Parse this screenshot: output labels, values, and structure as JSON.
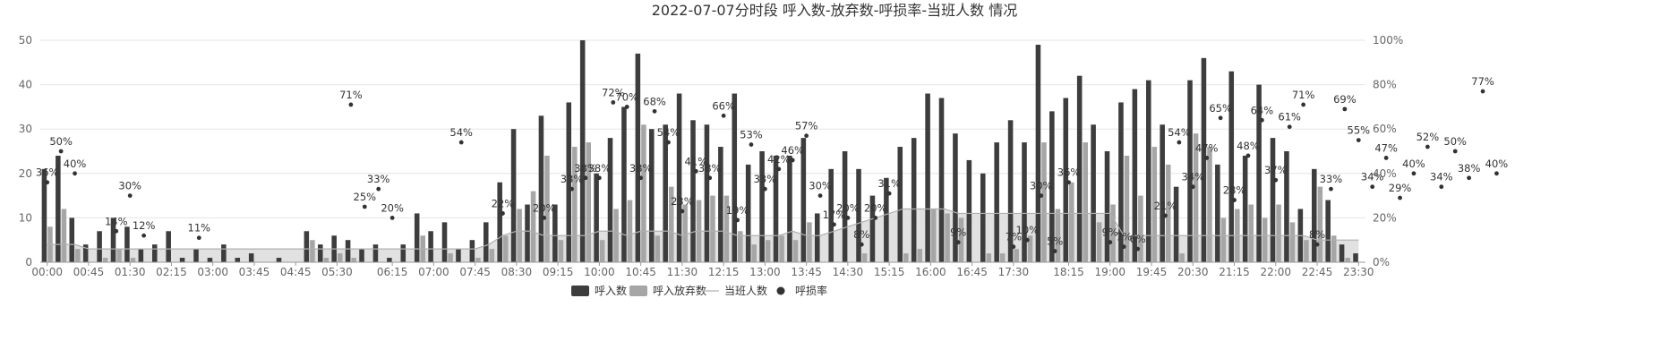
{
  "chart_data": {
    "type": "bar",
    "title": "2022-07-07分时段 呼入数-放弃数-呼损率-当班人数 情况",
    "left_axis": {
      "min": 0,
      "max": 50,
      "ticks": [
        "0",
        "10",
        "20",
        "30",
        "40",
        "50"
      ]
    },
    "right_axis": {
      "min": 0,
      "max": 100,
      "ticks": [
        "0%",
        "20%",
        "40%",
        "60%",
        "80%",
        "100%"
      ]
    },
    "x_tick_labels": [
      "00:00",
      "00:45",
      "01:30",
      "02:15",
      "03:00",
      "03:45",
      "04:45",
      "05:30",
      "06:15",
      "07:00",
      "07:45",
      "08:30",
      "09:15",
      "10:00",
      "10:45",
      "11:30",
      "12:15",
      "13:00",
      "13:45",
      "14:30",
      "15:15",
      "16:00",
      "16:45",
      "17:30",
      "18:15",
      "19:00",
      "19:45",
      "20:30",
      "21:15",
      "22:00",
      "22:45",
      "23:30"
    ],
    "interval_minutes": 15,
    "grid": true,
    "legend_position": "bottom",
    "series": [
      {
        "name": "呼入数",
        "type": "bar",
        "color": "#3d3d3d",
        "values": [
          21,
          24,
          10,
          4,
          7,
          10,
          8,
          3,
          4,
          7,
          1,
          3,
          1,
          4,
          1,
          2,
          0,
          1,
          0,
          7,
          4,
          6,
          5,
          3,
          4,
          1,
          4,
          11,
          7,
          9,
          3,
          5,
          9,
          18,
          30,
          13,
          33,
          13,
          36,
          50,
          20,
          28,
          35,
          47,
          30,
          31,
          38,
          32,
          31,
          26,
          38,
          22,
          25,
          24,
          24,
          28,
          11,
          21,
          25,
          21,
          15,
          19,
          26,
          28,
          38,
          37,
          29,
          23,
          20,
          27,
          32,
          27,
          49,
          34,
          37,
          42,
          31,
          25,
          36,
          39,
          41,
          31,
          17,
          41,
          46,
          22,
          43,
          24,
          40,
          28,
          25,
          12,
          21,
          14,
          4,
          2
        ]
      },
      {
        "name": "呼入放弃数",
        "type": "bar",
        "color": "#a6a6a6",
        "values": [
          8,
          12,
          3,
          0,
          1,
          3,
          1,
          0,
          0,
          0,
          0,
          0,
          0,
          0,
          0,
          0,
          0,
          0,
          0,
          5,
          1,
          2,
          1,
          0,
          0,
          0,
          0,
          6,
          0,
          2,
          0,
          1,
          3,
          6,
          12,
          16,
          24,
          5,
          26,
          27,
          5,
          12,
          14,
          31,
          6,
          17,
          13,
          14,
          15,
          15,
          7,
          4,
          5,
          6,
          5,
          9,
          0,
          0,
          0,
          2,
          0,
          0,
          2,
          3,
          12,
          11,
          10,
          0,
          2,
          2,
          3,
          6,
          27,
          12,
          18,
          27,
          9,
          13,
          24,
          15,
          26,
          22,
          2,
          29,
          26,
          10,
          12,
          13,
          10,
          13,
          9,
          5,
          17,
          6,
          1,
          0
        ]
      },
      {
        "name": "当班人数",
        "type": "line",
        "color": "#bdbdbd",
        "values": [
          4,
          4,
          4,
          3,
          3,
          3,
          3,
          3,
          3,
          3,
          3,
          3,
          3,
          3,
          3,
          3,
          3,
          3,
          3,
          3,
          3,
          3,
          3,
          3,
          3,
          3,
          3,
          3,
          3,
          3,
          3,
          3,
          4,
          6,
          7,
          7,
          6,
          6,
          6,
          6,
          7,
          7,
          6,
          7,
          7,
          7,
          6,
          7,
          7,
          7,
          6,
          6,
          6,
          6,
          7,
          6,
          6,
          7,
          8,
          9,
          10,
          11,
          12,
          12,
          12,
          12,
          11,
          11,
          11,
          11,
          11,
          11,
          11,
          11,
          11,
          11,
          11,
          11,
          6,
          6,
          6,
          6,
          6,
          6,
          6,
          6,
          6,
          6,
          6,
          6,
          6,
          6,
          5,
          5,
          5,
          5
        ]
      },
      {
        "name": "呼损率",
        "type": "scatter",
        "color": "#333333",
        "points": [
          {
            "i": 0,
            "v": 36
          },
          {
            "i": 1,
            "v": 50
          },
          {
            "i": 2,
            "v": 40
          },
          {
            "i": 5,
            "v": 14
          },
          {
            "i": 6,
            "v": 30
          },
          {
            "i": 7,
            "v": 12
          },
          {
            "i": 11,
            "v": 11
          },
          {
            "i": 22,
            "v": 71
          },
          {
            "i": 23,
            "v": 25
          },
          {
            "i": 24,
            "v": 33
          },
          {
            "i": 25,
            "v": 20
          },
          {
            "i": 30,
            "v": 54
          },
          {
            "i": 33,
            "v": 22
          },
          {
            "i": 36,
            "v": 20
          },
          {
            "i": 38,
            "v": 33
          },
          {
            "i": 39,
            "v": 38
          },
          {
            "i": 40,
            "v": 38
          },
          {
            "i": 41,
            "v": 72
          },
          {
            "i": 42,
            "v": 70
          },
          {
            "i": 43,
            "v": 38
          },
          {
            "i": 44,
            "v": 68
          },
          {
            "i": 45,
            "v": 54
          },
          {
            "i": 46,
            "v": 23
          },
          {
            "i": 47,
            "v": 41
          },
          {
            "i": 48,
            "v": 38
          },
          {
            "i": 49,
            "v": 66
          },
          {
            "i": 50,
            "v": 19
          },
          {
            "i": 51,
            "v": 53
          },
          {
            "i": 52,
            "v": 33
          },
          {
            "i": 53,
            "v": 42
          },
          {
            "i": 54,
            "v": 46
          },
          {
            "i": 55,
            "v": 57
          },
          {
            "i": 56,
            "v": 30
          },
          {
            "i": 57,
            "v": 17
          },
          {
            "i": 58,
            "v": 20
          },
          {
            "i": 59,
            "v": 8
          },
          {
            "i": 60,
            "v": 20
          },
          {
            "i": 61,
            "v": 31
          },
          {
            "i": 66,
            "v": 9
          },
          {
            "i": 70,
            "v": 7
          },
          {
            "i": 71,
            "v": 10
          },
          {
            "i": 72,
            "v": 30
          },
          {
            "i": 73,
            "v": 5
          },
          {
            "i": 74,
            "v": 36
          },
          {
            "i": 77,
            "v": 9
          },
          {
            "i": 78,
            "v": 7
          },
          {
            "i": 79,
            "v": 6
          },
          {
            "i": 81,
            "v": 21
          },
          {
            "i": 82,
            "v": 54
          },
          {
            "i": 83,
            "v": 34
          },
          {
            "i": 84,
            "v": 47
          },
          {
            "i": 85,
            "v": 65
          },
          {
            "i": 86,
            "v": 28
          },
          {
            "i": 87,
            "v": 48
          },
          {
            "i": 88,
            "v": 64
          },
          {
            "i": 89,
            "v": 37
          },
          {
            "i": 90,
            "v": 61
          },
          {
            "i": 91,
            "v": 71
          },
          {
            "i": 92,
            "v": 8
          },
          {
            "i": 93,
            "v": 33
          },
          {
            "i": 94,
            "v": 69
          },
          {
            "i": 95,
            "v": 55
          },
          {
            "i": 96,
            "v": 34
          },
          {
            "i": 97,
            "v": 47
          },
          {
            "i": 98,
            "v": 29
          },
          {
            "i": 99,
            "v": 40
          },
          {
            "i": 100,
            "v": 52
          },
          {
            "i": 101,
            "v": 34
          },
          {
            "i": 102,
            "v": 50
          },
          {
            "i": 103,
            "v": 38
          },
          {
            "i": 104,
            "v": 77
          },
          {
            "i": 105,
            "v": 40
          }
        ]
      }
    ]
  }
}
